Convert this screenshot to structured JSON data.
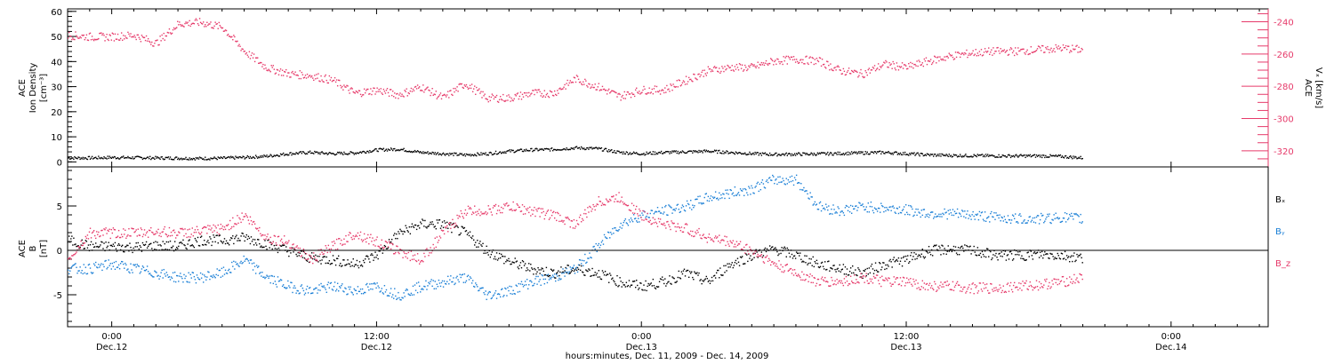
{
  "figure_title": "hours:minutes, Dec. 11, 2009 - Dec. 14, 2009",
  "time_ticks": [
    {
      "hour": 24,
      "time": "0:00",
      "date": "Dec.12"
    },
    {
      "hour": 36,
      "time": "12:00",
      "date": "Dec.12"
    },
    {
      "hour": 48,
      "time": "0:00",
      "date": "Dec.13"
    },
    {
      "hour": 60,
      "time": "12:00",
      "date": "Dec.13"
    },
    {
      "hour": 72,
      "time": "0:00",
      "date": "Dec.14"
    }
  ],
  "chart_data": [
    {
      "type": "scatter",
      "panel": "top",
      "title": "",
      "xlabel": "hours:minutes, Dec. 11, 2009 - Dec. 14, 2009",
      "xunit": "hours since Dec. 11, 2009 00:00",
      "xlim": [
        22,
        76.4
      ],
      "ylabel_left": [
        "ACE",
        "Ion Density",
        "[cm⁻³]"
      ],
      "ylim_left": [
        -2,
        61
      ],
      "yticks_left": [
        0,
        10,
        20,
        30,
        40,
        50,
        60
      ],
      "ylabel_right": [
        "ACE",
        "Vₓ [km/s]"
      ],
      "ylim_right": [
        -330,
        -232
      ],
      "yticks_right": [
        -320,
        -300,
        -280,
        -260,
        -240
      ],
      "series": [
        {
          "axis": "left",
          "color": "#000000",
          "x": [
            22,
            23,
            24,
            25,
            26,
            27,
            28,
            29,
            30,
            31,
            32,
            33,
            34,
            35,
            36,
            37,
            38,
            39,
            40,
            41,
            42,
            43,
            44,
            45,
            46,
            47,
            48,
            49,
            50,
            51,
            52,
            53,
            54,
            55,
            56,
            57,
            58,
            59,
            60,
            61,
            62,
            63,
            64,
            65,
            66,
            67,
            68
          ],
          "y": [
            1.8,
            1.8,
            2,
            1.9,
            1.8,
            1.7,
            1.6,
            1.7,
            2,
            2.5,
            3.5,
            4,
            3.5,
            3.8,
            5,
            5.3,
            4,
            3.5,
            3,
            3.5,
            4.5,
            5,
            5.2,
            5.8,
            5.5,
            4,
            3.5,
            4,
            4.2,
            4.5,
            4,
            3.5,
            3.2,
            3.3,
            3.4,
            3.6,
            3.8,
            4,
            3.5,
            3,
            2.8,
            2.7,
            2.6,
            2.6,
            2.6,
            2.4,
            1.8
          ]
        },
        {
          "axis": "right",
          "color": "#e63a6a",
          "x": [
            22,
            23,
            24,
            25,
            26,
            27,
            28,
            29,
            30,
            31,
            32,
            33,
            34,
            35,
            36,
            37,
            38,
            39,
            40,
            41,
            42,
            43,
            44,
            45,
            46,
            47,
            48,
            49,
            50,
            51,
            52,
            53,
            54,
            55,
            56,
            57,
            58,
            59,
            60,
            61,
            62,
            63,
            64,
            65,
            66,
            67,
            68
          ],
          "y": [
            -248,
            -249,
            -249,
            -248,
            -253,
            -241,
            -240,
            -243,
            -258,
            -268,
            -272,
            -273,
            -276,
            -284,
            -282,
            -285,
            -280,
            -287,
            -278,
            -287,
            -287,
            -284,
            -284,
            -275,
            -280,
            -286,
            -282,
            -282,
            -276,
            -270,
            -268,
            -268,
            -264,
            -263,
            -264,
            -270,
            -272,
            -266,
            -268,
            -264,
            -261,
            -259,
            -258,
            -258,
            -257,
            -256,
            -257
          ]
        }
      ]
    },
    {
      "type": "scatter",
      "panel": "bottom",
      "title": "",
      "xlabel": "hours:minutes, Dec. 11, 2009 - Dec. 14, 2009",
      "xunit": "hours since Dec. 11, 2009 00:00",
      "xlim": [
        22,
        76.4
      ],
      "ylabel": [
        "ACE",
        "B",
        "[nT]"
      ],
      "ylim": [
        -8.6,
        9.4
      ],
      "yticks": [
        -5,
        0,
        5
      ],
      "zero_line": true,
      "legend": "right",
      "series": [
        {
          "name": "Bₓ",
          "color": "#000000",
          "x": [
            22,
            23,
            24,
            25,
            26,
            27,
            28,
            29,
            30,
            31,
            32,
            33,
            34,
            35,
            36,
            37,
            38,
            39,
            40,
            41,
            42,
            43,
            44,
            45,
            46,
            47,
            48,
            49,
            50,
            51,
            52,
            53,
            54,
            55,
            56,
            57,
            58,
            59,
            60,
            61,
            62,
            63,
            64,
            65,
            66,
            67,
            68
          ],
          "y": [
            1.2,
            0.5,
            0.5,
            0.4,
            0.6,
            0.5,
            1.2,
            1.2,
            1.5,
            0.8,
            0,
            -0.8,
            -1,
            -1.5,
            -0.5,
            2,
            3,
            3,
            2,
            0,
            -1.2,
            -2,
            -2.5,
            -2,
            -2.5,
            -3.5,
            -4,
            -3.5,
            -2.5,
            -3.5,
            -1.5,
            -0.5,
            0.2,
            -0.5,
            -1.5,
            -2,
            -2.5,
            -1.5,
            -1,
            0,
            0.2,
            0,
            -0.5,
            -0.5,
            -0.4,
            -0.5,
            -0.8
          ]
        },
        {
          "name": "Bᵧ",
          "color": "#1a7fd6",
          "x": [
            22,
            23,
            24,
            25,
            26,
            27,
            28,
            29,
            30,
            31,
            32,
            33,
            34,
            35,
            36,
            37,
            38,
            39,
            40,
            41,
            42,
            43,
            44,
            45,
            46,
            47,
            48,
            49,
            50,
            51,
            52,
            53,
            54,
            55,
            56,
            57,
            58,
            59,
            60,
            61,
            62,
            63,
            64,
            65,
            66,
            67,
            68
          ],
          "y": [
            -2,
            -2,
            -1.5,
            -2,
            -2.5,
            -3,
            -3,
            -2.5,
            -1,
            -3,
            -4,
            -4.5,
            -4,
            -4.5,
            -4,
            -5,
            -4,
            -3.5,
            -3,
            -5,
            -4.5,
            -3.5,
            -3,
            -2,
            0.5,
            3,
            4,
            4.5,
            5,
            6,
            6.5,
            7,
            8,
            8,
            5,
            4.5,
            5,
            4.8,
            4.6,
            4.2,
            4.2,
            4,
            3.8,
            3.6,
            3.6,
            3.8,
            3.6
          ]
        },
        {
          "name": "B_z",
          "color": "#e63a6a",
          "x": [
            22,
            23,
            24,
            25,
            26,
            27,
            28,
            29,
            30,
            31,
            32,
            33,
            34,
            35,
            36,
            37,
            38,
            39,
            40,
            41,
            42,
            43,
            44,
            45,
            46,
            47,
            48,
            49,
            50,
            51,
            52,
            53,
            54,
            55,
            56,
            57,
            58,
            59,
            60,
            61,
            62,
            63,
            64,
            65,
            66,
            67,
            68
          ],
          "y": [
            -1,
            2,
            2,
            2,
            2.2,
            2,
            2.2,
            2.5,
            4,
            1.5,
            1,
            -1,
            0.5,
            2,
            1,
            0,
            -1,
            2,
            4.5,
            4.5,
            5,
            4.5,
            4,
            3,
            5.5,
            6,
            4,
            3,
            2.5,
            1.5,
            1,
            0,
            -1.5,
            -2.5,
            -3.5,
            -3.5,
            -3,
            -3.5,
            -3.5,
            -4,
            -4,
            -4.2,
            -4.2,
            -4,
            -3.8,
            -3.5,
            -3
          ]
        }
      ]
    }
  ]
}
